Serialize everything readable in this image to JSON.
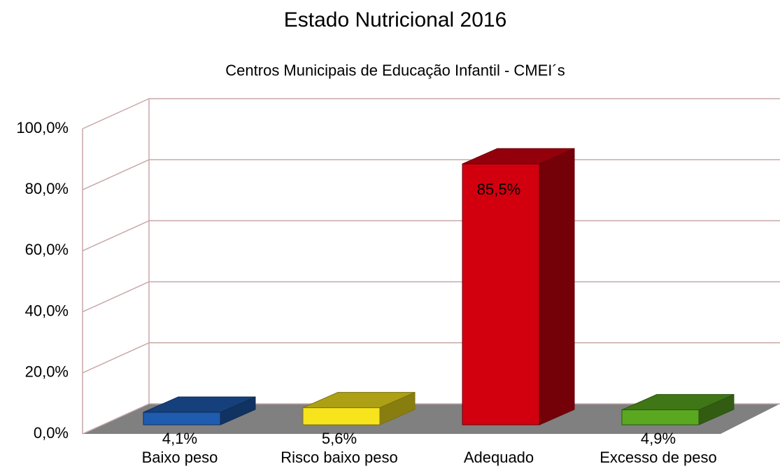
{
  "chart_data": {
    "type": "bar3d",
    "title": "Estado Nutricional 2016",
    "subtitle": "Centros Municipais de Educação Infantil - CMEI´s",
    "categories": [
      "Baixo peso",
      "Risco baixo peso",
      "Adequado",
      "Excesso de peso"
    ],
    "values": [
      4.1,
      5.6,
      85.5,
      4.9
    ],
    "value_labels": [
      "4,1%",
      "5,6%",
      "85,5%",
      "4,9%"
    ],
    "colors": [
      "#1f5cb0",
      "#f7e41c",
      "#d2000f",
      "#5aa820"
    ],
    "ylim": [
      0,
      100
    ],
    "yticks": [
      {
        "value": 0,
        "label": "0,0%"
      },
      {
        "value": 20,
        "label": "20,0%"
      },
      {
        "value": 40,
        "label": "40,0%"
      },
      {
        "value": 60,
        "label": "60,0%"
      },
      {
        "value": 80,
        "label": "80,0%"
      },
      {
        "value": 100,
        "label": "100,0%"
      }
    ],
    "grid": true
  }
}
